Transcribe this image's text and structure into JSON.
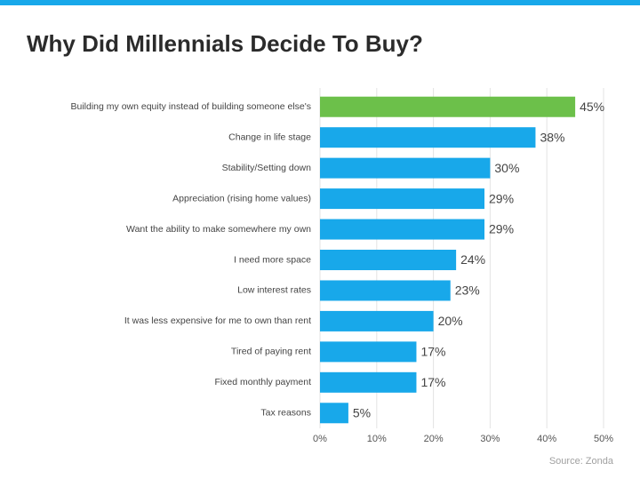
{
  "chart_data": {
    "type": "bar",
    "orientation": "horizontal",
    "title": "Why Did Millennials Decide To Buy?",
    "source": "Source: Zonda",
    "categories": [
      "Building my own equity instead of building someone else's",
      "Change in life stage",
      "Stability/Setting down",
      "Appreciation (rising home values)",
      "Want the ability to make somewhere my own",
      "I need more space",
      "Low interest rates",
      "It was less expensive for me to own than rent",
      "Tired of paying rent",
      "Fixed monthly payment",
      "Tax reasons"
    ],
    "values": [
      45,
      38,
      30,
      29,
      29,
      24,
      23,
      20,
      17,
      17,
      5
    ],
    "value_labels": [
      "45%",
      "38%",
      "30%",
      "29%",
      "29%",
      "24%",
      "23%",
      "20%",
      "17%",
      "17%",
      "5%"
    ],
    "colors": [
      "#6cc04a",
      "#18a8ea",
      "#18a8ea",
      "#18a8ea",
      "#18a8ea",
      "#18a8ea",
      "#18a8ea",
      "#18a8ea",
      "#18a8ea",
      "#18a8ea",
      "#18a8ea"
    ],
    "xlim": [
      0,
      50
    ],
    "xticks": [
      {
        "value": 0,
        "label": "0%"
      },
      {
        "value": 10,
        "label": "10%"
      },
      {
        "value": 20,
        "label": "20%"
      },
      {
        "value": 30,
        "label": "30%"
      },
      {
        "value": 40,
        "label": "40%"
      },
      {
        "value": 50,
        "label": "50%"
      }
    ],
    "grid": true
  }
}
